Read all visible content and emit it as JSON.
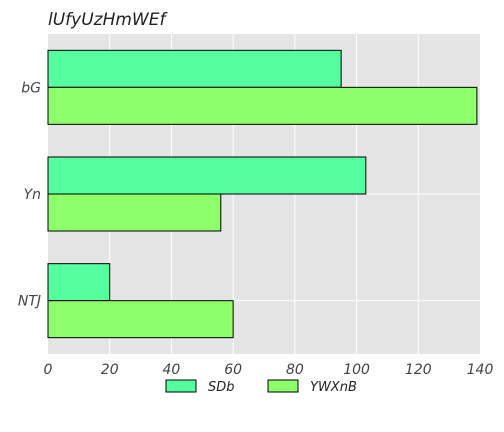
{
  "chart_data": {
    "type": "bar",
    "orientation": "horizontal",
    "title": "lUfyUzHmWEf",
    "xlabel": "",
    "ylabel": "",
    "categories": [
      "bG",
      "Yn",
      "NTJ"
    ],
    "series": [
      {
        "name": "SDb",
        "values": [
          95,
          103,
          20
        ],
        "color": "#55ff9f"
      },
      {
        "name": "YWXnB",
        "values": [
          139,
          56,
          60
        ],
        "color": "#8cff6a"
      }
    ],
    "xlim": [
      0,
      140
    ],
    "xticks": [
      0,
      20,
      40,
      60,
      80,
      100,
      120,
      140
    ],
    "grid": true,
    "legend_position": "bottom-center",
    "background_color": "#e5e5e5"
  }
}
